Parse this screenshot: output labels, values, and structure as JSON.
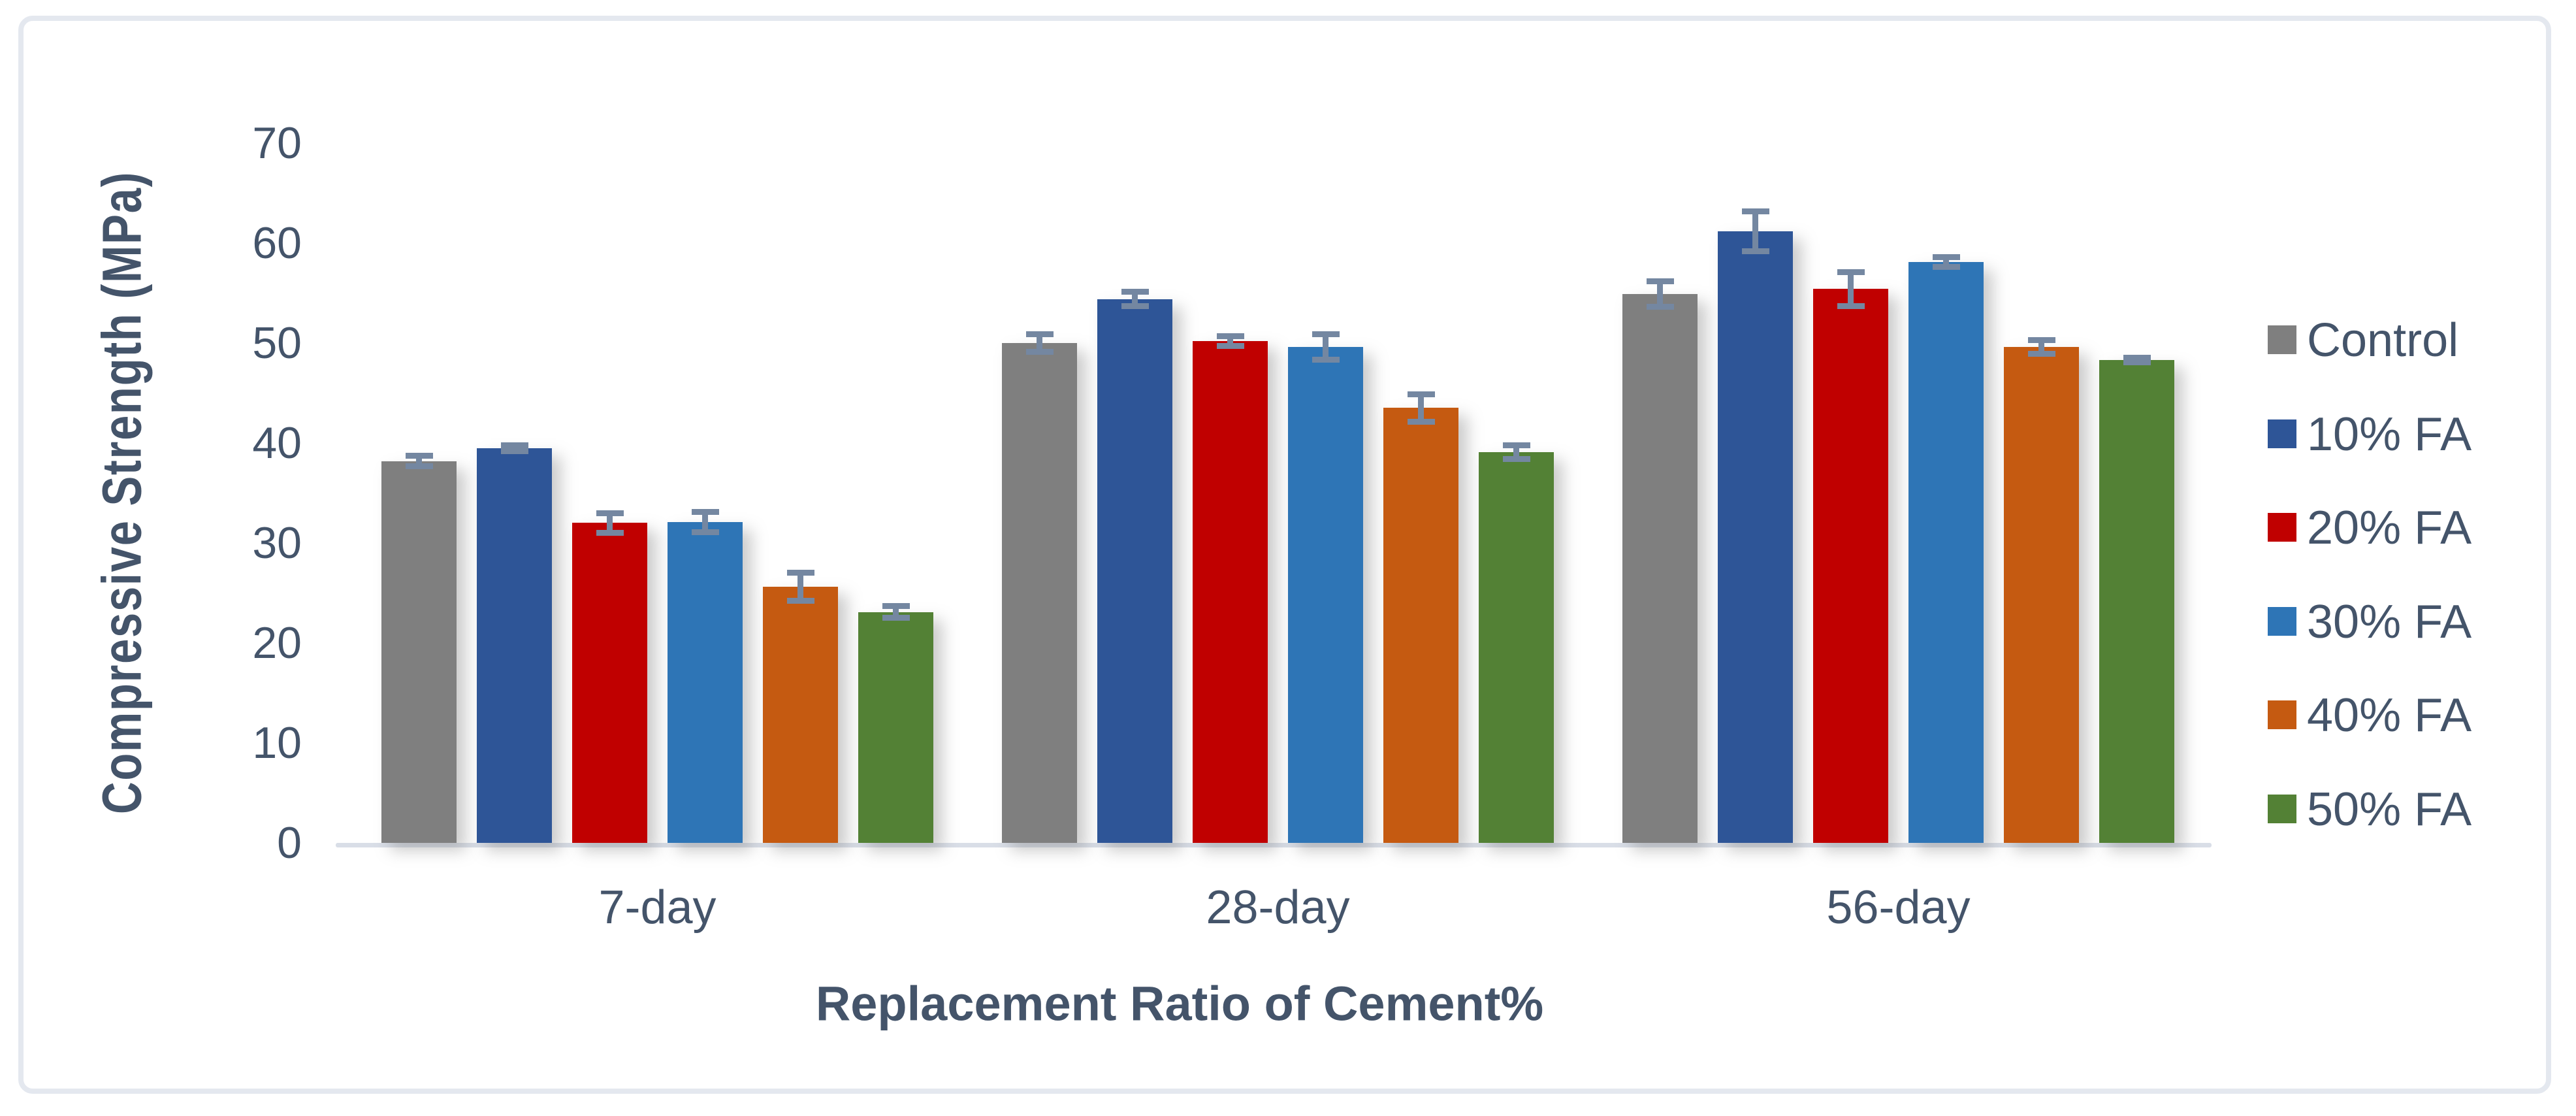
{
  "chart_data": {
    "type": "bar",
    "title": "",
    "categories": [
      "7-day",
      "28-day",
      "56-day"
    ],
    "series": [
      {
        "name": "Control",
        "color": "#7F7F7F",
        "values": [
          38.2,
          50.0,
          54.9
        ],
        "errors": [
          0.5,
          0.9,
          1.3
        ]
      },
      {
        "name": "10% FA",
        "color": "#2E5597",
        "values": [
          39.5,
          54.4,
          61.2
        ],
        "errors": [
          0.3,
          0.7,
          2.0
        ]
      },
      {
        "name": "20% FA",
        "color": "#C00000",
        "values": [
          32.0,
          50.2,
          55.4
        ],
        "errors": [
          1.0,
          0.5,
          1.7
        ]
      },
      {
        "name": "30% FA",
        "color": "#2E75B6",
        "values": [
          32.1,
          49.6,
          58.1
        ],
        "errors": [
          1.0,
          1.3,
          0.5
        ]
      },
      {
        "name": "40% FA",
        "color": "#C55A11",
        "values": [
          25.6,
          43.5,
          49.6
        ],
        "errors": [
          1.4,
          1.4,
          0.7
        ]
      },
      {
        "name": "50% FA",
        "color": "#538135",
        "values": [
          23.1,
          39.1,
          48.3
        ],
        "errors": [
          0.6,
          0.7,
          0.2
        ]
      }
    ],
    "xlabel": "Replacement Ratio of Cement%",
    "ylabel": "Compressive Strength (MPa)",
    "ylim": [
      0,
      70
    ],
    "yticks": [
      0,
      10,
      20,
      30,
      40,
      50,
      60,
      70
    ],
    "grid": false,
    "legend_position": "right",
    "error_bars": true,
    "colors": {
      "text": "#44546A",
      "error_bar": "#7487A1",
      "axis_line": "#D9DEE7",
      "frame_border": "#E4E8EF",
      "background": "#FFFFFF"
    }
  }
}
